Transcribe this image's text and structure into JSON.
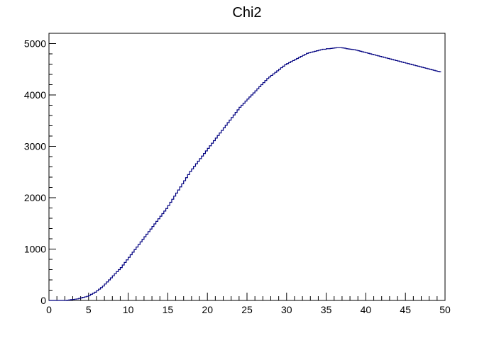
{
  "chart_data": {
    "type": "step-histogram",
    "title": "Chi2",
    "xlabel": "",
    "ylabel": "",
    "xlim": [
      0,
      50
    ],
    "ylim": [
      0,
      5200
    ],
    "x_ticks": [
      "0",
      "5",
      "10",
      "15",
      "20",
      "25",
      "30",
      "35",
      "40",
      "45",
      "50"
    ],
    "y_ticks": [
      "0",
      "1000",
      "2000",
      "3000",
      "4000",
      "5000"
    ],
    "grid": false,
    "line_color": "#000080",
    "bins": 200,
    "x_start": 0,
    "bin_width": 0.25,
    "values": [
      0,
      0,
      0,
      0,
      0,
      0,
      0,
      0,
      0,
      5,
      10,
      15,
      20,
      25,
      30,
      40,
      50,
      60,
      70,
      80,
      100,
      120,
      140,
      160,
      190,
      220,
      250,
      280,
      320,
      360,
      400,
      440,
      480,
      520,
      560,
      600,
      640,
      690,
      740,
      790,
      840,
      890,
      940,
      990,
      1040,
      1090,
      1140,
      1190,
      1240,
      1290,
      1340,
      1390,
      1440,
      1490,
      1540,
      1590,
      1640,
      1690,
      1740,
      1790,
      1850,
      1910,
      1970,
      2030,
      2090,
      2150,
      2210,
      2270,
      2330,
      2390,
      2450,
      2510,
      2560,
      2610,
      2660,
      2710,
      2760,
      2810,
      2860,
      2910,
      2960,
      3010,
      3060,
      3110,
      3160,
      3210,
      3260,
      3310,
      3360,
      3410,
      3460,
      3510,
      3560,
      3610,
      3660,
      3710,
      3760,
      3800,
      3840,
      3880,
      3920,
      3960,
      4000,
      4040,
      4080,
      4120,
      4160,
      4200,
      4240,
      4280,
      4320,
      4350,
      4380,
      4410,
      4440,
      4470,
      4500,
      4530,
      4560,
      4590,
      4610,
      4630,
      4650,
      4670,
      4690,
      4710,
      4730,
      4750,
      4770,
      4790,
      4810,
      4820,
      4830,
      4840,
      4850,
      4860,
      4870,
      4880,
      4890,
      4890,
      4900,
      4900,
      4905,
      4910,
      4915,
      4920,
      4920,
      4920,
      4915,
      4910,
      4900,
      4895,
      4890,
      4885,
      4880,
      4870,
      4860,
      4850,
      4840,
      4830,
      4820,
      4810,
      4800,
      4790,
      4780,
      4770,
      4760,
      4750,
      4740,
      4730,
      4720,
      4710,
      4700,
      4690,
      4680,
      4670,
      4660,
      4650,
      4640,
      4630,
      4620,
      4610,
      4600,
      4590,
      4580,
      4570,
      4560,
      4550,
      4540,
      4530,
      4520,
      4510,
      4500,
      4490,
      4480,
      4470,
      4460,
      4450
    ]
  }
}
